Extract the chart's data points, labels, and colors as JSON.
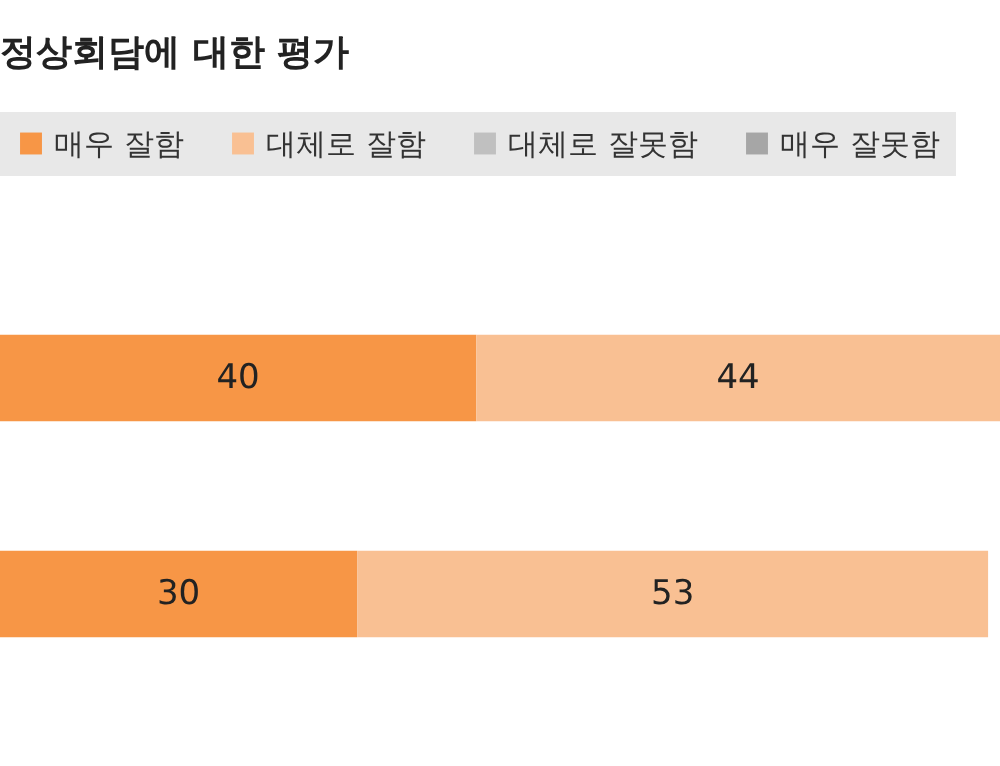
{
  "chart_data": {
    "type": "bar",
    "title": "정상회담에 대한 평가",
    "orientation": "horizontal",
    "stacked": true,
    "data_labels": true,
    "legend": "top",
    "categories": [
      null,
      null
    ],
    "series": [
      {
        "name": "매우 잘함",
        "color": "#f79646",
        "values": [
          40,
          30
        ]
      },
      {
        "name": "대체로 잘함",
        "color": "#f9c093",
        "values": [
          44,
          53
        ]
      },
      {
        "name": "대체로 잘못함",
        "color": "#c0c0c0",
        "values": [
          null,
          null
        ]
      },
      {
        "name": "매우 잘못함",
        "color": "#a6a6a6",
        "values": [
          null,
          null
        ]
      }
    ]
  }
}
